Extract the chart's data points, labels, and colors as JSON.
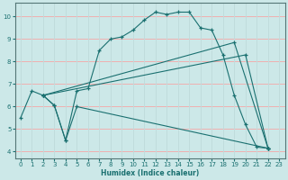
{
  "xlabel": "Humidex (Indice chaleur)",
  "xlim": [
    -0.5,
    23.5
  ],
  "ylim": [
    3.7,
    10.6
  ],
  "yticks": [
    4,
    5,
    6,
    7,
    8,
    9,
    10
  ],
  "xticks": [
    0,
    1,
    2,
    3,
    4,
    5,
    6,
    7,
    8,
    9,
    10,
    11,
    12,
    13,
    14,
    15,
    16,
    17,
    18,
    19,
    20,
    21,
    22,
    23
  ],
  "bg_color": "#cce8e8",
  "line_color": "#1a7070",
  "grid_color_h": "#f0b0b0",
  "grid_color_v": "#c0dcdc",
  "lines": [
    {
      "x": [
        0,
        1,
        2,
        3,
        4,
        5,
        6,
        7,
        8,
        9,
        10,
        11,
        12,
        13,
        14,
        15,
        16,
        17,
        18,
        19,
        20,
        21,
        22
      ],
      "y": [
        5.5,
        6.7,
        6.5,
        6.05,
        4.5,
        6.7,
        6.8,
        8.5,
        9.0,
        9.1,
        9.4,
        9.85,
        10.2,
        10.1,
        10.2,
        10.2,
        9.5,
        9.4,
        8.3,
        6.5,
        5.2,
        4.2,
        4.15
      ]
    },
    {
      "x": [
        2,
        3,
        4,
        5,
        22
      ],
      "y": [
        6.5,
        6.05,
        4.5,
        6.0,
        4.15
      ]
    },
    {
      "x": [
        2,
        19,
        22
      ],
      "y": [
        6.5,
        8.85,
        4.15
      ]
    },
    {
      "x": [
        2,
        20,
        22
      ],
      "y": [
        6.5,
        8.3,
        4.15
      ]
    }
  ]
}
